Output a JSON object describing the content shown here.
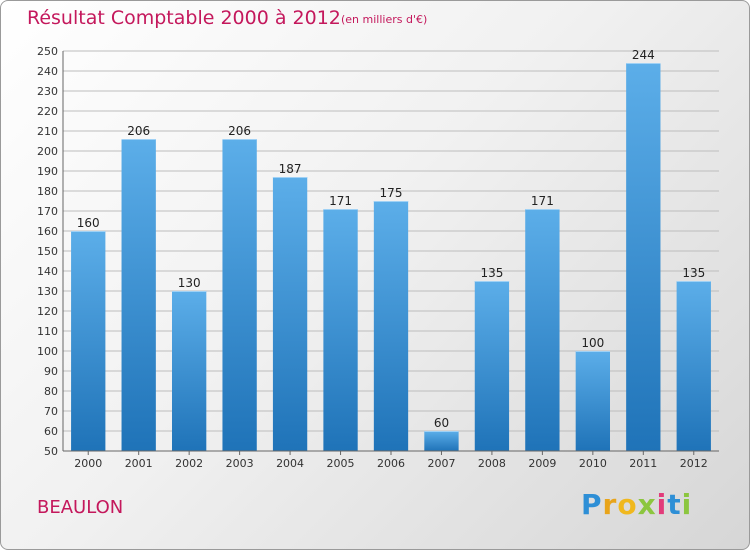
{
  "header": {
    "title": "Résultat Comptable 2000 à 2012",
    "subtitle": "(en milliers d'€)"
  },
  "footer": {
    "place": "BEAULON",
    "logo_letters": [
      "P",
      "r",
      "o",
      "x",
      "i",
      "t",
      "i"
    ]
  },
  "colors": {
    "title": "#c4185c",
    "bar_top": "#5caee9",
    "bar_bottom": "#1f73b8",
    "grid": "#bdbdbd"
  },
  "chart_data": {
    "type": "bar",
    "title": "Résultat Comptable 2000 à 2012",
    "subtitle": "(en milliers d'€)",
    "categories": [
      "2000",
      "2001",
      "2002",
      "2003",
      "2004",
      "2005",
      "2006",
      "2007",
      "2008",
      "2009",
      "2010",
      "2011",
      "2012"
    ],
    "values": [
      160,
      206,
      130,
      206,
      187,
      171,
      175,
      60,
      135,
      171,
      100,
      244,
      135
    ],
    "ylim": [
      50,
      250
    ],
    "ytick_step": 10,
    "grid": true,
    "legend": "none",
    "data_labels": true
  }
}
